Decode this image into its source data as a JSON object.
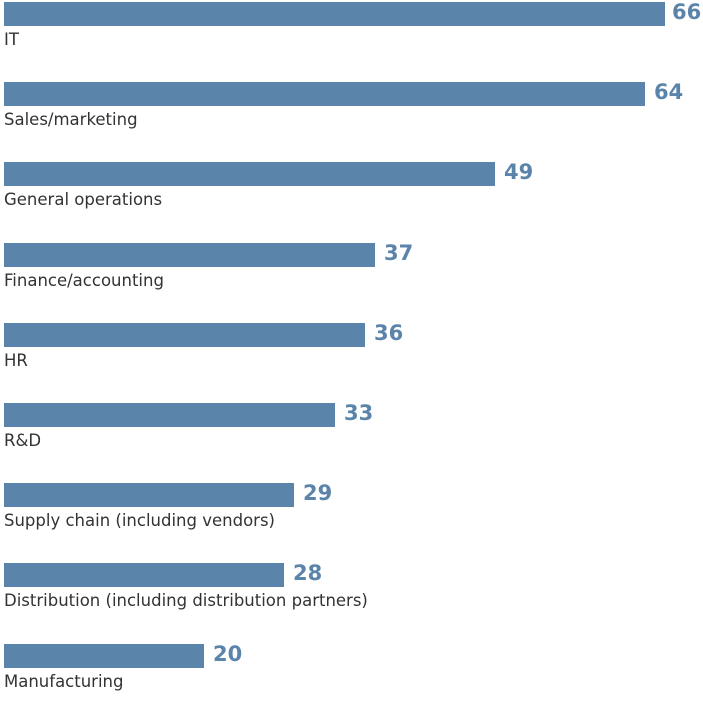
{
  "chart_data": {
    "type": "bar",
    "orientation": "horizontal",
    "categories": [
      "IT",
      "Sales/marketing",
      "General operations",
      "Finance/accounting",
      "HR",
      "R&D",
      "Supply chain (including vendors)",
      "Distribution (including distribution partners)",
      "Manufacturing"
    ],
    "values": [
      66,
      64,
      49,
      37,
      36,
      33,
      29,
      28,
      20
    ],
    "title": "",
    "xlabel": "",
    "ylabel": "",
    "xlim": [
      0,
      66
    ],
    "grid": false,
    "bar_color": "#5b84aa",
    "value_label_color": "#5b84aa",
    "category_label_color": "#333333"
  }
}
